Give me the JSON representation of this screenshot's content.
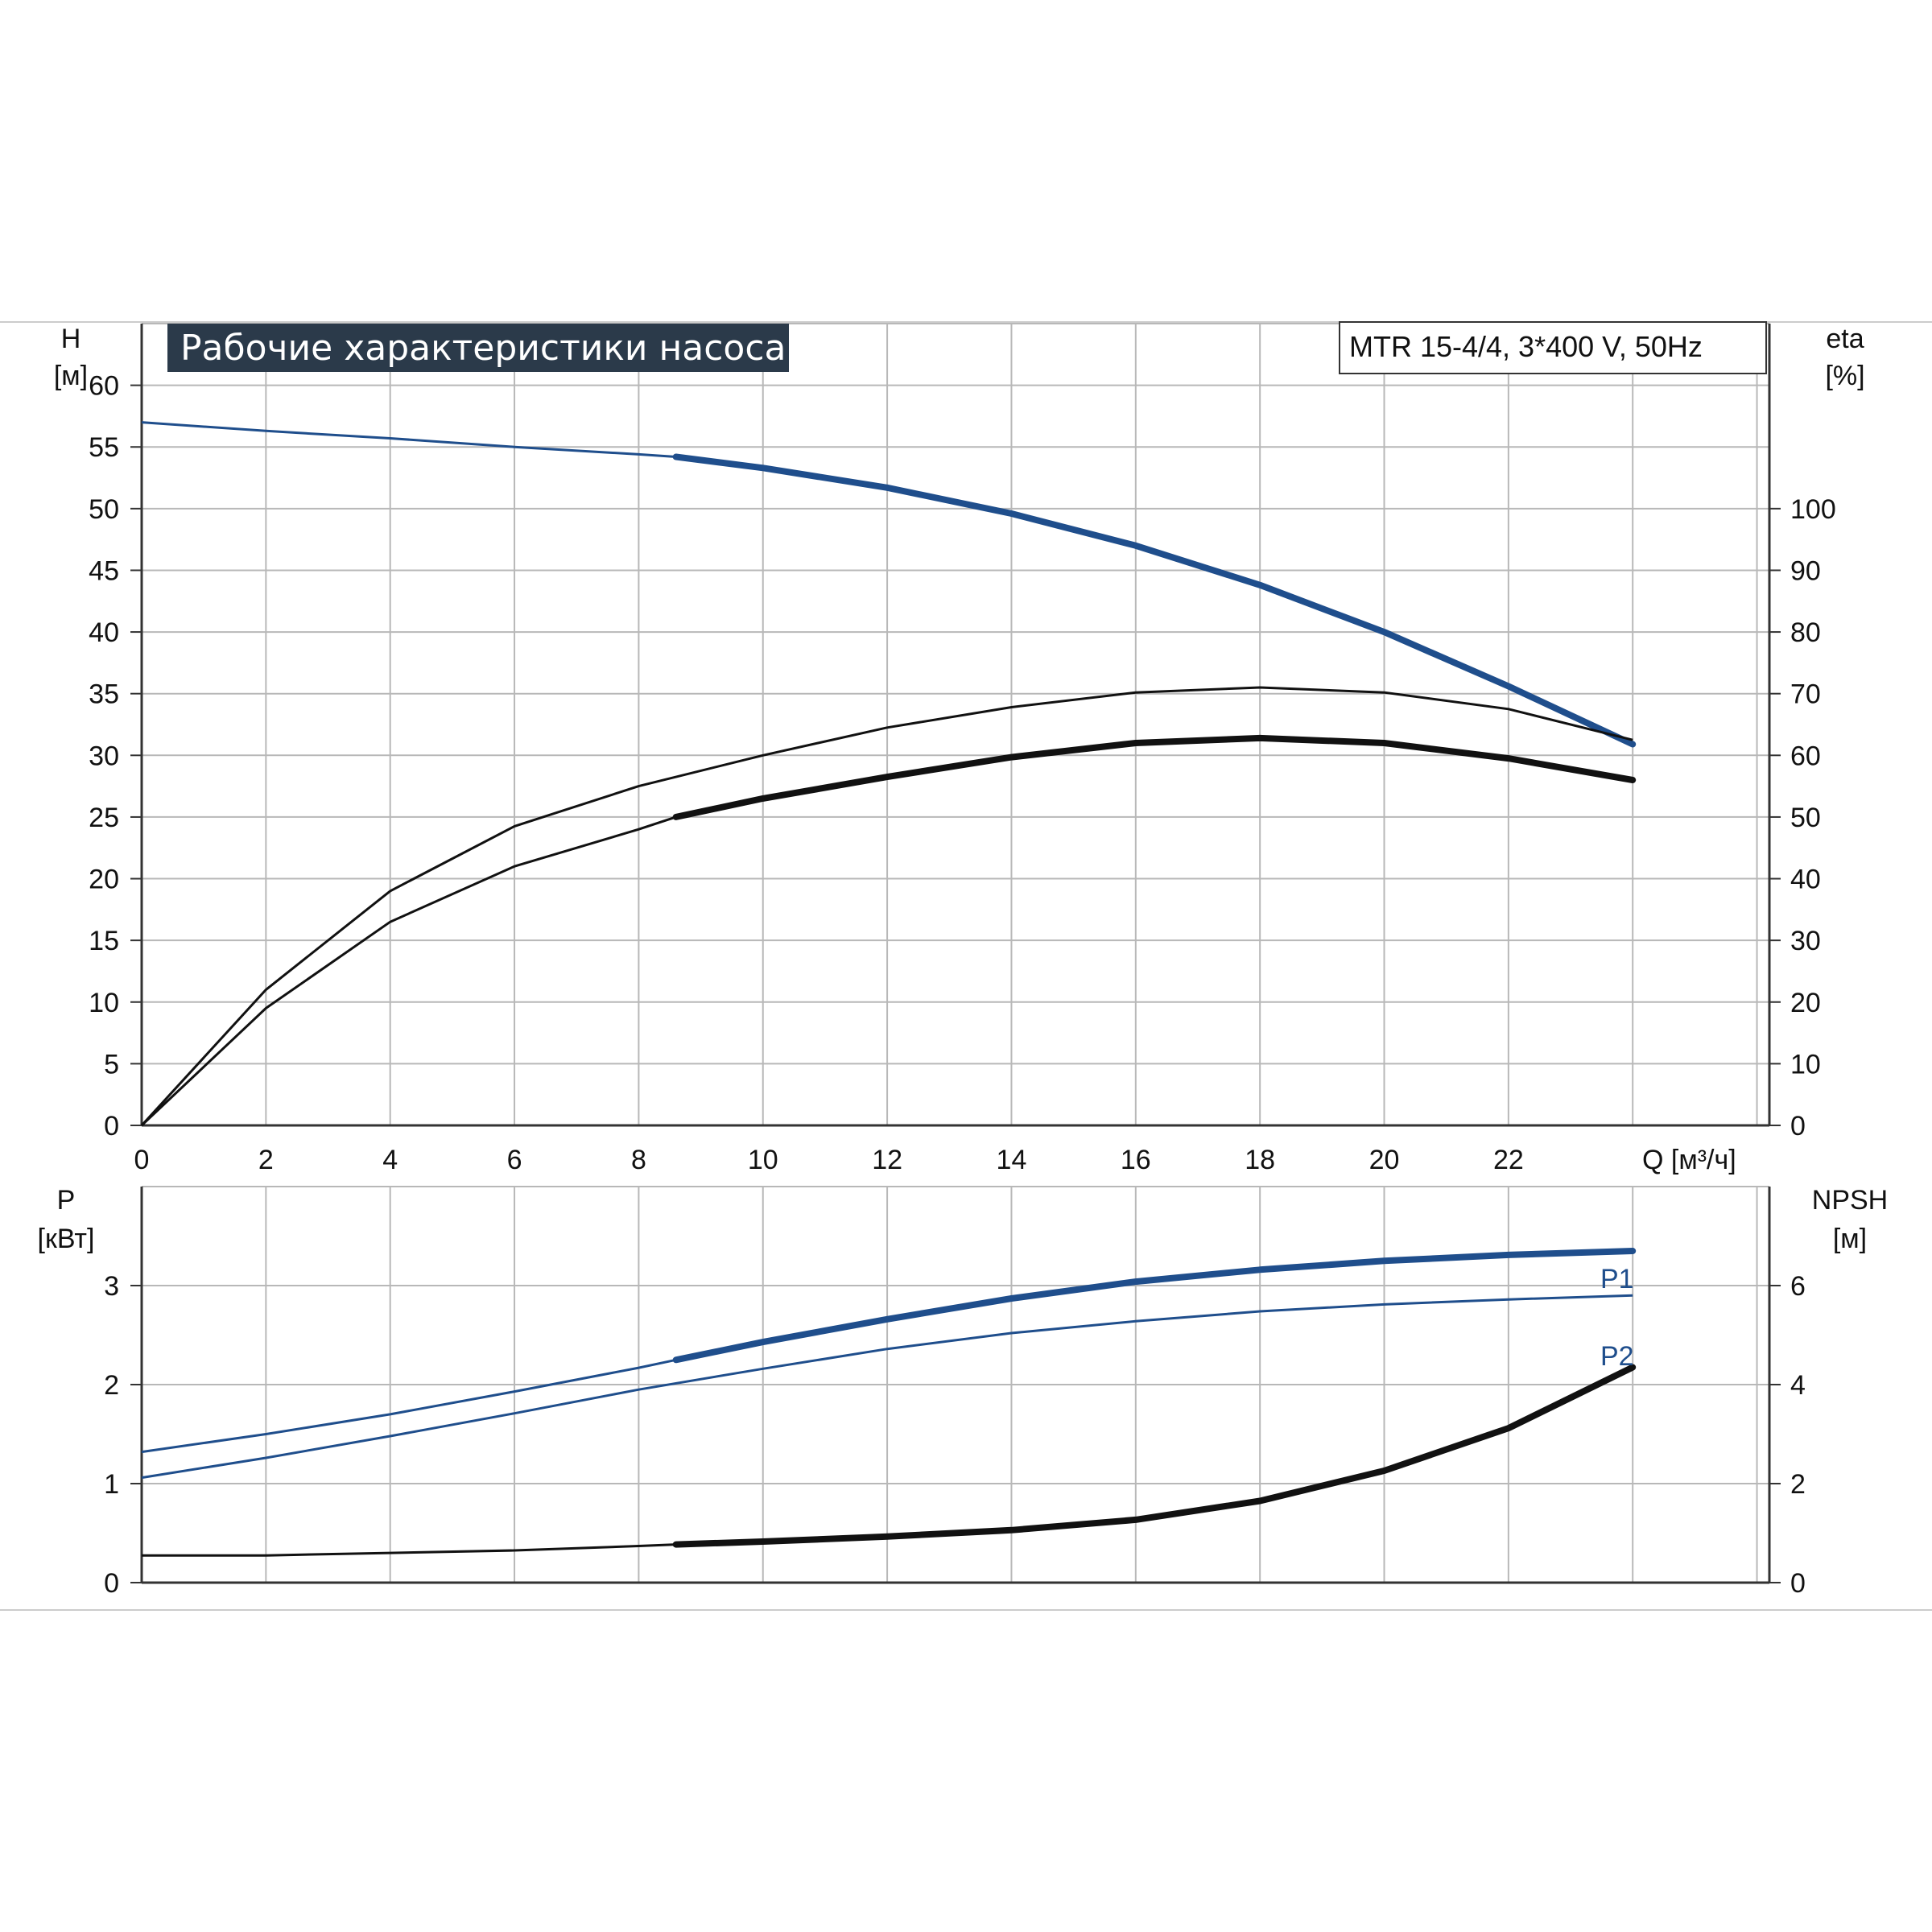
{
  "chart_data": [
    {
      "type": "line",
      "title": "Рабочие характеристики насоса",
      "model_label": "MTR 15-4/4, 3*400 V, 50Hz",
      "xlabel": "Q [м³/ч]",
      "ylabel_left": [
        "H",
        "[м]"
      ],
      "ylabel_right": [
        "eta",
        "[%]"
      ],
      "x_ticks": [
        0,
        2,
        4,
        6,
        8,
        10,
        12,
        14,
        16,
        18,
        20,
        22
      ],
      "y_left_ticks": [
        0,
        5,
        10,
        15,
        20,
        25,
        30,
        35,
        40,
        45,
        50,
        55,
        60
      ],
      "y_right_ticks": [
        0,
        10,
        20,
        30,
        40,
        50,
        60,
        70,
        80,
        90,
        100
      ],
      "xlim": [
        0,
        26.2
      ],
      "ylim_left": [
        0,
        65
      ],
      "ylim_right": [
        0,
        130
      ],
      "grid": true,
      "series": [
        {
          "axis": "left",
          "color": "#1f4e8c",
          "x": [
            0,
            2,
            4,
            6,
            8,
            8.6,
            10,
            12,
            14,
            16,
            18,
            20,
            22,
            24
          ],
          "y": [
            57,
            56.3,
            55.7,
            55.0,
            54.4,
            54.2,
            53.3,
            51.7,
            49.6,
            47.0,
            43.8,
            40.0,
            35.6,
            30.9
          ],
          "bold_from": 8.6
        },
        {
          "axis": "right",
          "color": "#111111",
          "x": [
            0,
            2,
            4,
            6,
            8,
            10,
            12,
            14,
            16,
            18,
            20,
            22,
            24
          ],
          "y": [
            0,
            22,
            38,
            48.5,
            55,
            60,
            64.5,
            67.8,
            70.2,
            71,
            70.2,
            67.5,
            62.5
          ]
        },
        {
          "axis": "right",
          "color": "#111111",
          "x": [
            0,
            2,
            4,
            6,
            8,
            8.6,
            10,
            12,
            14,
            16,
            18,
            20,
            22,
            24
          ],
          "y": [
            0,
            19,
            33,
            42,
            48,
            50,
            53,
            56.5,
            59.7,
            62,
            62.8,
            62,
            59.5,
            56
          ],
          "bold_from": 8.6
        }
      ]
    },
    {
      "type": "line",
      "ylabel_left": [
        "P",
        "[кВт]"
      ],
      "ylabel_right": [
        "NPSH",
        "[м]"
      ],
      "x_ticks": [
        0,
        2,
        4,
        6,
        8,
        10,
        12,
        14,
        16,
        18,
        20,
        22
      ],
      "y_left_ticks": [
        0,
        1,
        2,
        3
      ],
      "y_right_ticks": [
        0,
        2,
        4,
        6
      ],
      "xlim": [
        0,
        26.2
      ],
      "ylim_left": [
        0,
        4
      ],
      "ylim_right": [
        0,
        8
      ],
      "grid": true,
      "series": [
        {
          "name": "P1",
          "axis": "left",
          "color": "#1f4e8c",
          "x": [
            0,
            2,
            4,
            6,
            8,
            8.6,
            10,
            12,
            14,
            16,
            18,
            20,
            22,
            24
          ],
          "y": [
            1.32,
            1.5,
            1.7,
            1.93,
            2.17,
            2.25,
            2.43,
            2.66,
            2.87,
            3.04,
            3.16,
            3.25,
            3.31,
            3.35
          ],
          "bold_from": 8.6
        },
        {
          "name": "P2",
          "axis": "left",
          "color": "#1f4e8c",
          "x": [
            0,
            2,
            4,
            6,
            8,
            10,
            12,
            14,
            16,
            18,
            20,
            22,
            24
          ],
          "y": [
            1.06,
            1.26,
            1.48,
            1.71,
            1.95,
            2.16,
            2.36,
            2.52,
            2.64,
            2.74,
            2.81,
            2.86,
            2.9
          ]
        },
        {
          "axis": "right",
          "color": "#111111",
          "x": [
            0,
            2,
            4,
            6,
            8,
            8.6,
            10,
            12,
            14,
            16,
            18,
            20,
            22,
            24
          ],
          "y": [
            0.55,
            0.55,
            0.6,
            0.65,
            0.74,
            0.77,
            0.83,
            0.93,
            1.06,
            1.27,
            1.65,
            2.26,
            3.12,
            4.35
          ],
          "bold_from": 8.6
        }
      ]
    }
  ]
}
